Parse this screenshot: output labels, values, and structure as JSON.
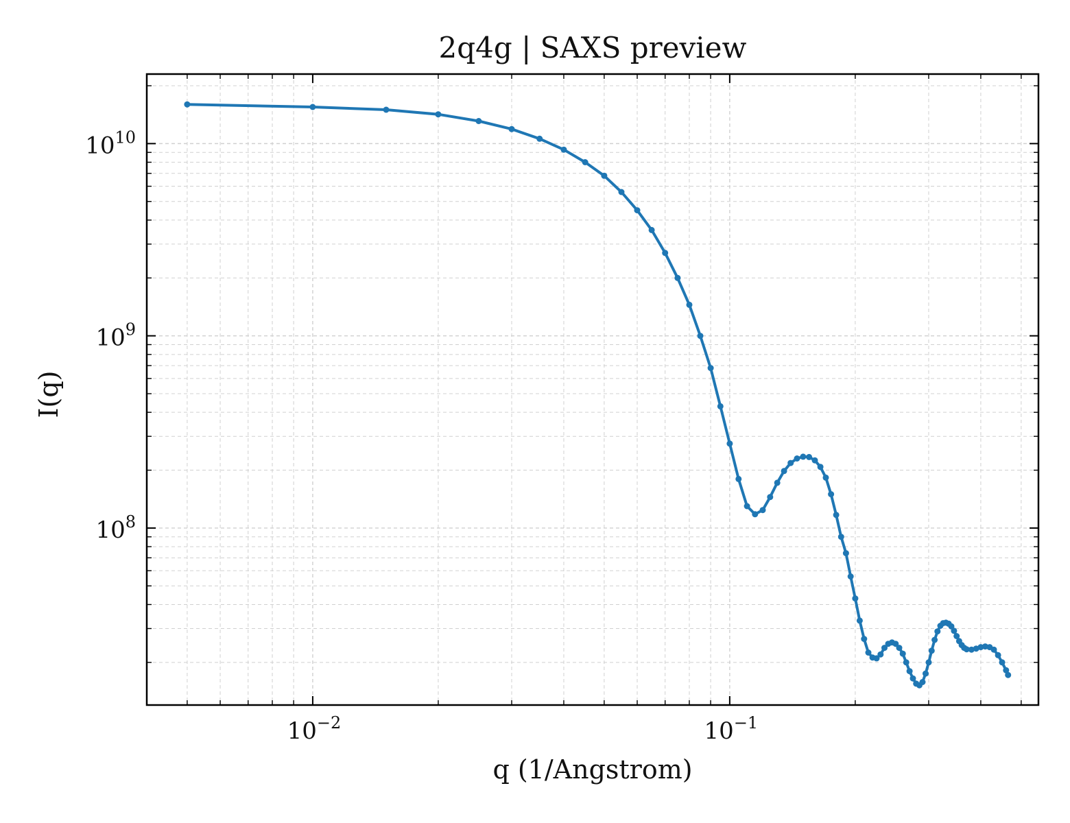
{
  "chart_data": {
    "type": "line",
    "title": "2q4g | SAXS preview",
    "xlabel": "q (1/Angstrom)",
    "ylabel": "I(q)",
    "x_scale": "log",
    "y_scale": "log",
    "xlim": [
      0.004,
      0.55
    ],
    "ylim": [
      12000000,
      23000000000
    ],
    "x_ticks": [
      {
        "value": 0.01,
        "base": "10",
        "exp": "−2"
      },
      {
        "value": 0.1,
        "base": "10",
        "exp": "−1"
      }
    ],
    "y_ticks": [
      {
        "value": 100000000,
        "base": "10",
        "exp": "8"
      },
      {
        "value": 1000000000,
        "base": "10",
        "exp": "9"
      },
      {
        "value": 10000000000,
        "base": "10",
        "exp": "10"
      }
    ],
    "grid": true,
    "color": "#1f77b4",
    "series": [
      {
        "points": [
          [
            0.005,
            16000000000.0
          ],
          [
            0.01,
            15500000000.0
          ],
          [
            0.015,
            15000000000.0
          ],
          [
            0.02,
            14200000000.0
          ],
          [
            0.025,
            13100000000.0
          ],
          [
            0.03,
            11900000000.0
          ],
          [
            0.035,
            10600000000.0
          ],
          [
            0.04,
            9300000000.0
          ],
          [
            0.045,
            8000000000.0
          ],
          [
            0.05,
            6800000000.0
          ],
          [
            0.055,
            5600000000.0
          ],
          [
            0.06,
            4500000000.0
          ],
          [
            0.065,
            3550000000.0
          ],
          [
            0.07,
            2700000000.0
          ],
          [
            0.075,
            2000000000.0
          ],
          [
            0.08,
            1450000000.0
          ],
          [
            0.085,
            1000000000.0
          ],
          [
            0.09,
            680000000.0
          ],
          [
            0.095,
            430000000.0
          ],
          [
            0.1,
            275000000.0
          ],
          [
            0.105,
            180000000.0
          ],
          [
            0.11,
            130000000.0
          ],
          [
            0.115,
            118000000.0
          ],
          [
            0.12,
            124000000.0
          ],
          [
            0.125,
            145000000.0
          ],
          [
            0.13,
            172000000.0
          ],
          [
            0.135,
            198000000.0
          ],
          [
            0.14,
            218000000.0
          ],
          [
            0.145,
            230000000.0
          ],
          [
            0.15,
            235000000.0
          ],
          [
            0.155,
            234000000.0
          ],
          [
            0.16,
            225000000.0
          ],
          [
            0.165,
            208000000.0
          ],
          [
            0.17,
            183000000.0
          ],
          [
            0.175,
            150000000.0
          ],
          [
            0.18,
            117000000.0
          ],
          [
            0.185,
            90000000.0
          ],
          [
            0.19,
            74000000.0
          ],
          [
            0.195,
            56000000.0
          ],
          [
            0.2,
            43000000.0
          ],
          [
            0.205,
            33000000.0
          ],
          [
            0.21,
            26500000.0
          ],
          [
            0.215,
            22500000.0
          ],
          [
            0.22,
            21200000.0
          ],
          [
            0.225,
            21000000.0
          ],
          [
            0.23,
            22000000.0
          ],
          [
            0.235,
            23800000.0
          ],
          [
            0.24,
            25000000.0
          ],
          [
            0.245,
            25400000.0
          ],
          [
            0.25,
            25000000.0
          ],
          [
            0.255,
            23800000.0
          ],
          [
            0.26,
            22200000.0
          ],
          [
            0.265,
            20000000.0
          ],
          [
            0.27,
            18000000.0
          ],
          [
            0.275,
            16500000.0
          ],
          [
            0.28,
            15500000.0
          ],
          [
            0.285,
            15200000.0
          ],
          [
            0.29,
            15800000.0
          ],
          [
            0.295,
            17500000.0
          ],
          [
            0.3,
            20000000.0
          ],
          [
            0.305,
            23000000.0
          ],
          [
            0.31,
            26200000.0
          ],
          [
            0.315,
            29000000.0
          ],
          [
            0.32,
            31000000.0
          ],
          [
            0.325,
            32000000.0
          ],
          [
            0.33,
            32200000.0
          ],
          [
            0.335,
            31800000.0
          ],
          [
            0.34,
            30800000.0
          ],
          [
            0.345,
            29200000.0
          ],
          [
            0.35,
            27400000.0
          ],
          [
            0.355,
            25800000.0
          ],
          [
            0.36,
            24600000.0
          ],
          [
            0.365,
            23800000.0
          ],
          [
            0.37,
            23400000.0
          ],
          [
            0.38,
            23300000.0
          ],
          [
            0.39,
            23600000.0
          ],
          [
            0.4,
            24000000.0
          ],
          [
            0.41,
            24200000.0
          ],
          [
            0.42,
            24000000.0
          ],
          [
            0.43,
            23300000.0
          ],
          [
            0.44,
            21800000.0
          ],
          [
            0.45,
            20000000.0
          ],
          [
            0.46,
            18200000.0
          ],
          [
            0.465,
            17200000.0
          ]
        ]
      }
    ]
  }
}
